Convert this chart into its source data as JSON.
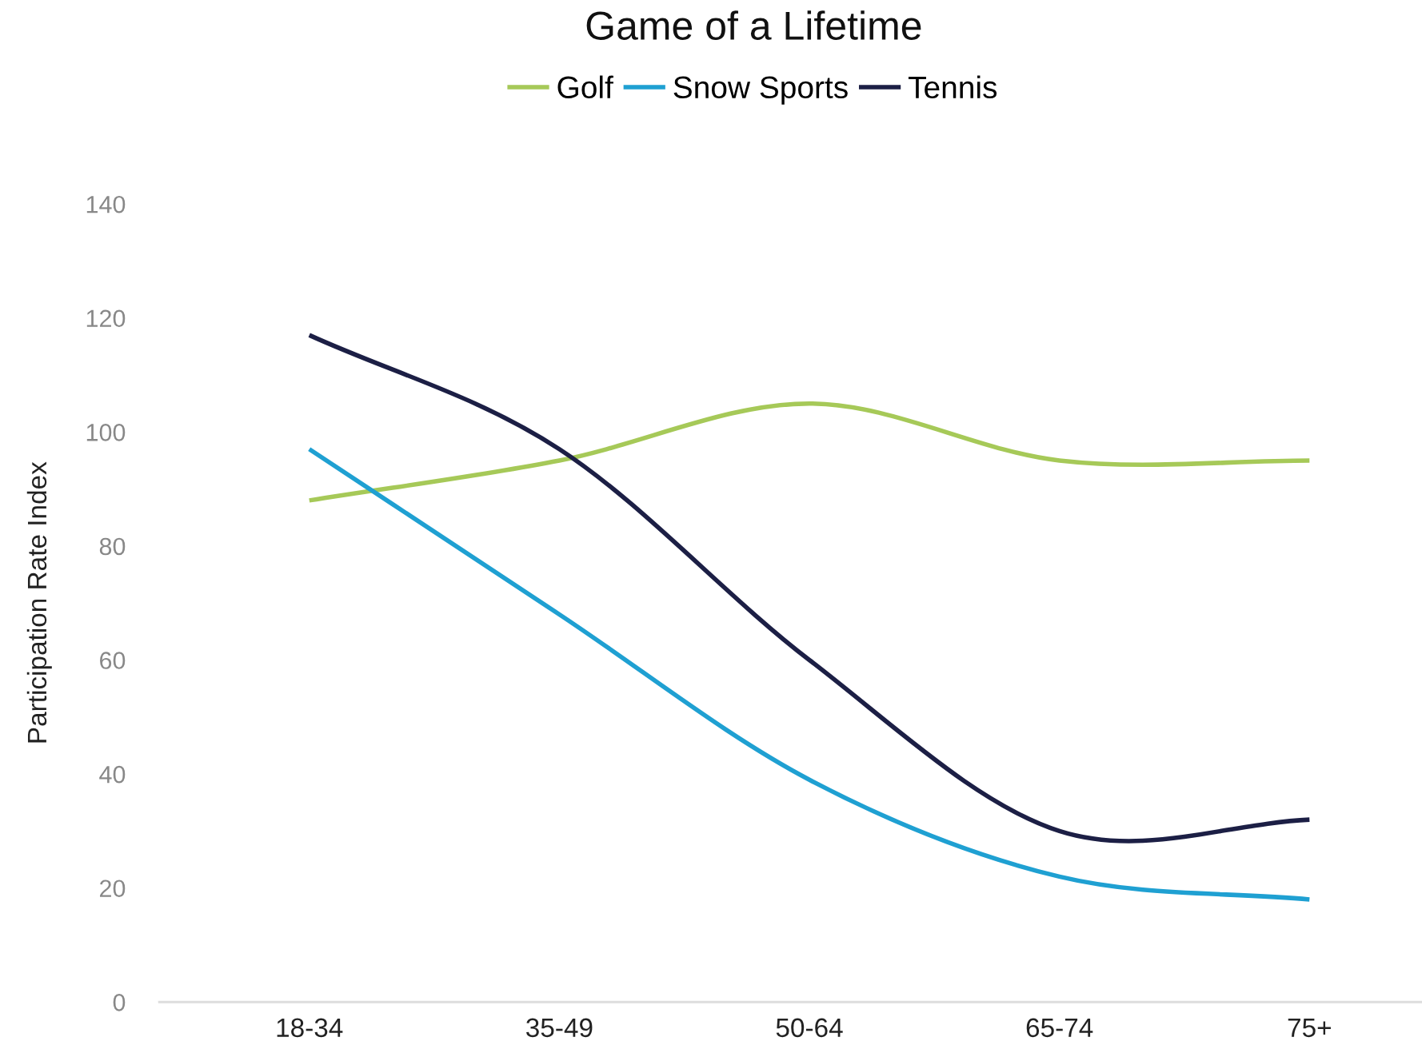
{
  "chart_data": {
    "type": "line",
    "title": "Game of a Lifetime",
    "ylabel": "Participation Rate Index",
    "categories": [
      "18-34",
      "35-49",
      "50-64",
      "65-74",
      "75+"
    ],
    "series": [
      {
        "name": "Golf",
        "color": "#a6c958",
        "values": [
          88,
          95,
          105,
          95,
          95
        ]
      },
      {
        "name": "Snow Sports",
        "color": "#1fa0d2",
        "values": [
          97,
          68,
          39,
          22,
          18
        ]
      },
      {
        "name": "Tennis",
        "color": "#1c1f45",
        "values": [
          117,
          97,
          60,
          30,
          32
        ]
      }
    ],
    "ylim": [
      0,
      140
    ],
    "yticks": [
      0,
      20,
      40,
      60,
      80,
      100,
      120,
      140
    ],
    "grid": false,
    "legend": "top",
    "marker": "none",
    "line_style": "solid"
  }
}
